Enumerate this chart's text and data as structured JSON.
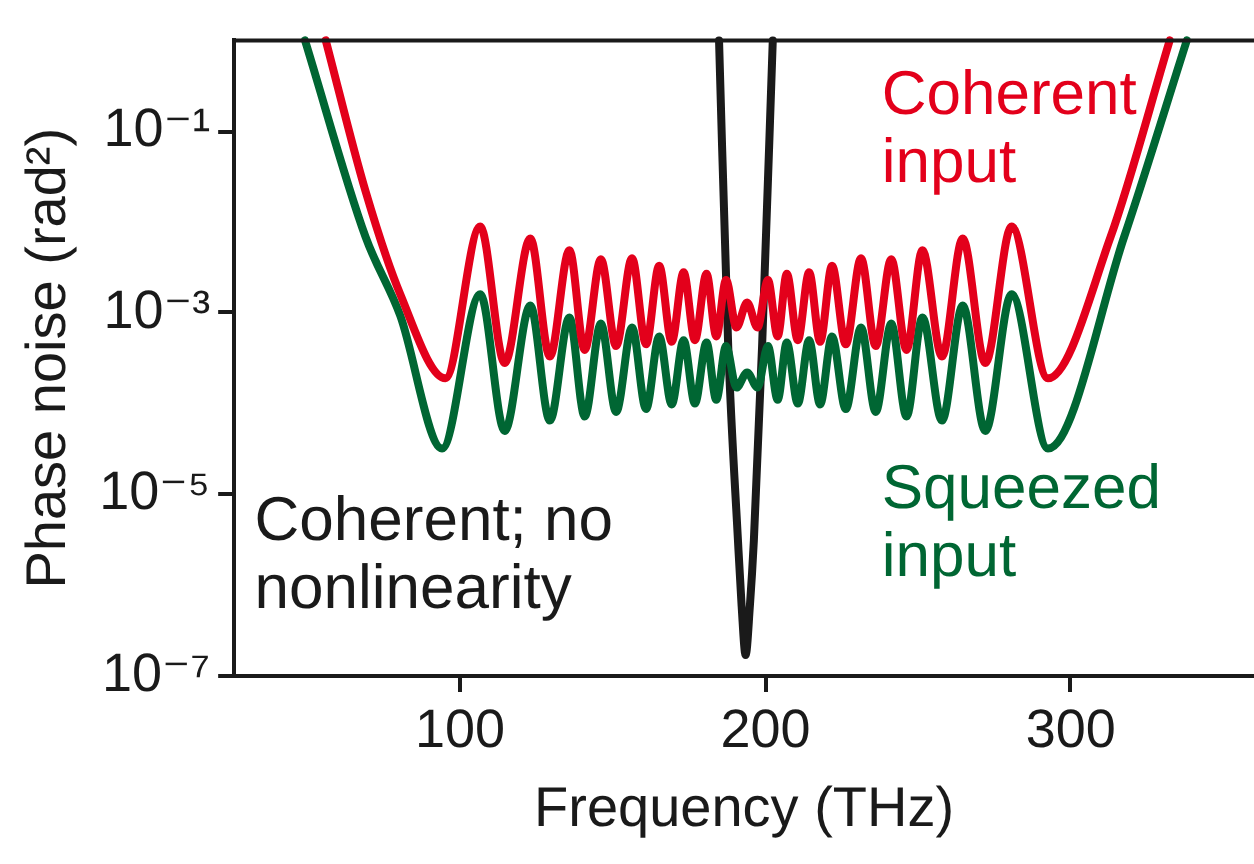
{
  "chart_data": {
    "type": "line",
    "xlabel": "Frequency (THz)",
    "ylabel": "Phase noise (rad²)",
    "log": "y",
    "grid": false,
    "legend": false,
    "marker": "none",
    "line_style": "solid",
    "xlim": [
      26,
      360
    ],
    "xticks": [
      100,
      200,
      300
    ],
    "ylim": [
      1e-07,
      1
    ],
    "yticks": [
      {
        "value": 0.1,
        "label": "10⁻¹"
      },
      {
        "value": 0.001,
        "label": "10⁻³"
      },
      {
        "value": 1e-05,
        "label": "10⁻⁵"
      },
      {
        "value": 1e-07,
        "label": "10⁻⁷"
      }
    ],
    "series": [
      {
        "name": "Coherent input",
        "color": "#e3001b",
        "x": [
          56.0,
          69.0,
          80.4,
          95.2,
          106.6,
          114.6,
          123.0,
          129.4,
          135.8,
          140.8,
          146.1,
          151.1,
          156.3,
          160.9,
          165.2,
          169.3,
          173.2,
          176.9,
          180.7,
          183.9,
          187.1,
          190.5,
          194.0,
          197.4,
          200.8,
          204.0,
          207.0,
          210.6,
          214.3,
          217.9,
          221.8,
          226.3,
          231.3,
          236.1,
          241.2,
          246.2,
          251.4,
          257.8,
          264.6,
          272.0,
          280.6,
          292.5,
          313.0,
          332.4
        ],
        "values": [
          1,
          0.022,
          0.0016,
          0.00019,
          0.0089,
          0.00028,
          0.0066,
          0.00033,
          0.0049,
          0.00039,
          0.0039,
          0.00043,
          0.004,
          0.00045,
          0.0033,
          0.00048,
          0.0028,
          0.0005,
          0.0027,
          0.00055,
          0.0023,
          0.00069,
          0.0013,
          0.00069,
          0.0023,
          0.00055,
          0.0027,
          0.0005,
          0.0028,
          0.00048,
          0.0033,
          0.00045,
          0.004,
          0.00043,
          0.0039,
          0.00039,
          0.0049,
          0.00033,
          0.0066,
          0.00028,
          0.0089,
          0.00019,
          0.0068,
          1
        ]
      },
      {
        "name": "Squeezed input",
        "color": "#006633",
        "x": [
          49.2,
          69.0,
          80.4,
          94.1,
          106.6,
          114.6,
          123.0,
          129.4,
          135.8,
          140.8,
          146.1,
          151.1,
          156.3,
          160.9,
          165.2,
          169.3,
          173.2,
          176.9,
          180.7,
          183.9,
          187.1,
          190.5,
          194.0,
          197.4,
          200.8,
          204.0,
          207.0,
          210.6,
          214.3,
          217.9,
          221.8,
          226.3,
          231.3,
          236.1,
          241.2,
          246.2,
          251.4,
          257.8,
          264.6,
          272.0,
          280.6,
          292.5,
          317.5,
          338.0
        ],
        "values": [
          1,
          0.0069,
          0.00093,
          3.2e-05,
          0.0016,
          5e-05,
          0.0012,
          6.5e-05,
          0.00089,
          7.2e-05,
          0.00076,
          8.1e-05,
          0.00069,
          8.7e-05,
          0.00055,
          9.8e-05,
          0.0005,
          0.0001,
          0.00047,
          0.00011,
          0.00043,
          0.00015,
          0.00022,
          0.00015,
          0.00043,
          0.00011,
          0.00047,
          0.0001,
          0.0005,
          9.8e-05,
          0.00055,
          8.7e-05,
          0.00069,
          8.1e-05,
          0.00076,
          7.2e-05,
          0.00089,
          6.5e-05,
          0.0012,
          5e-05,
          0.0016,
          3.2e-05,
          0.0069,
          1
        ]
      },
      {
        "name": "Coherent; no nonlinearity",
        "color": "#1a1a1a",
        "x": [
          184.8,
          187.8,
          191.0,
          192.2,
          193.5,
          194.9,
          196.2,
          198.9,
          202.4
        ],
        "values": [
          1,
          0.00043,
          3.1e-06,
          5.9e-07,
          1.7e-07,
          5.9e-07,
          3.1e-06,
          0.00043,
          1
        ]
      }
    ]
  }
}
